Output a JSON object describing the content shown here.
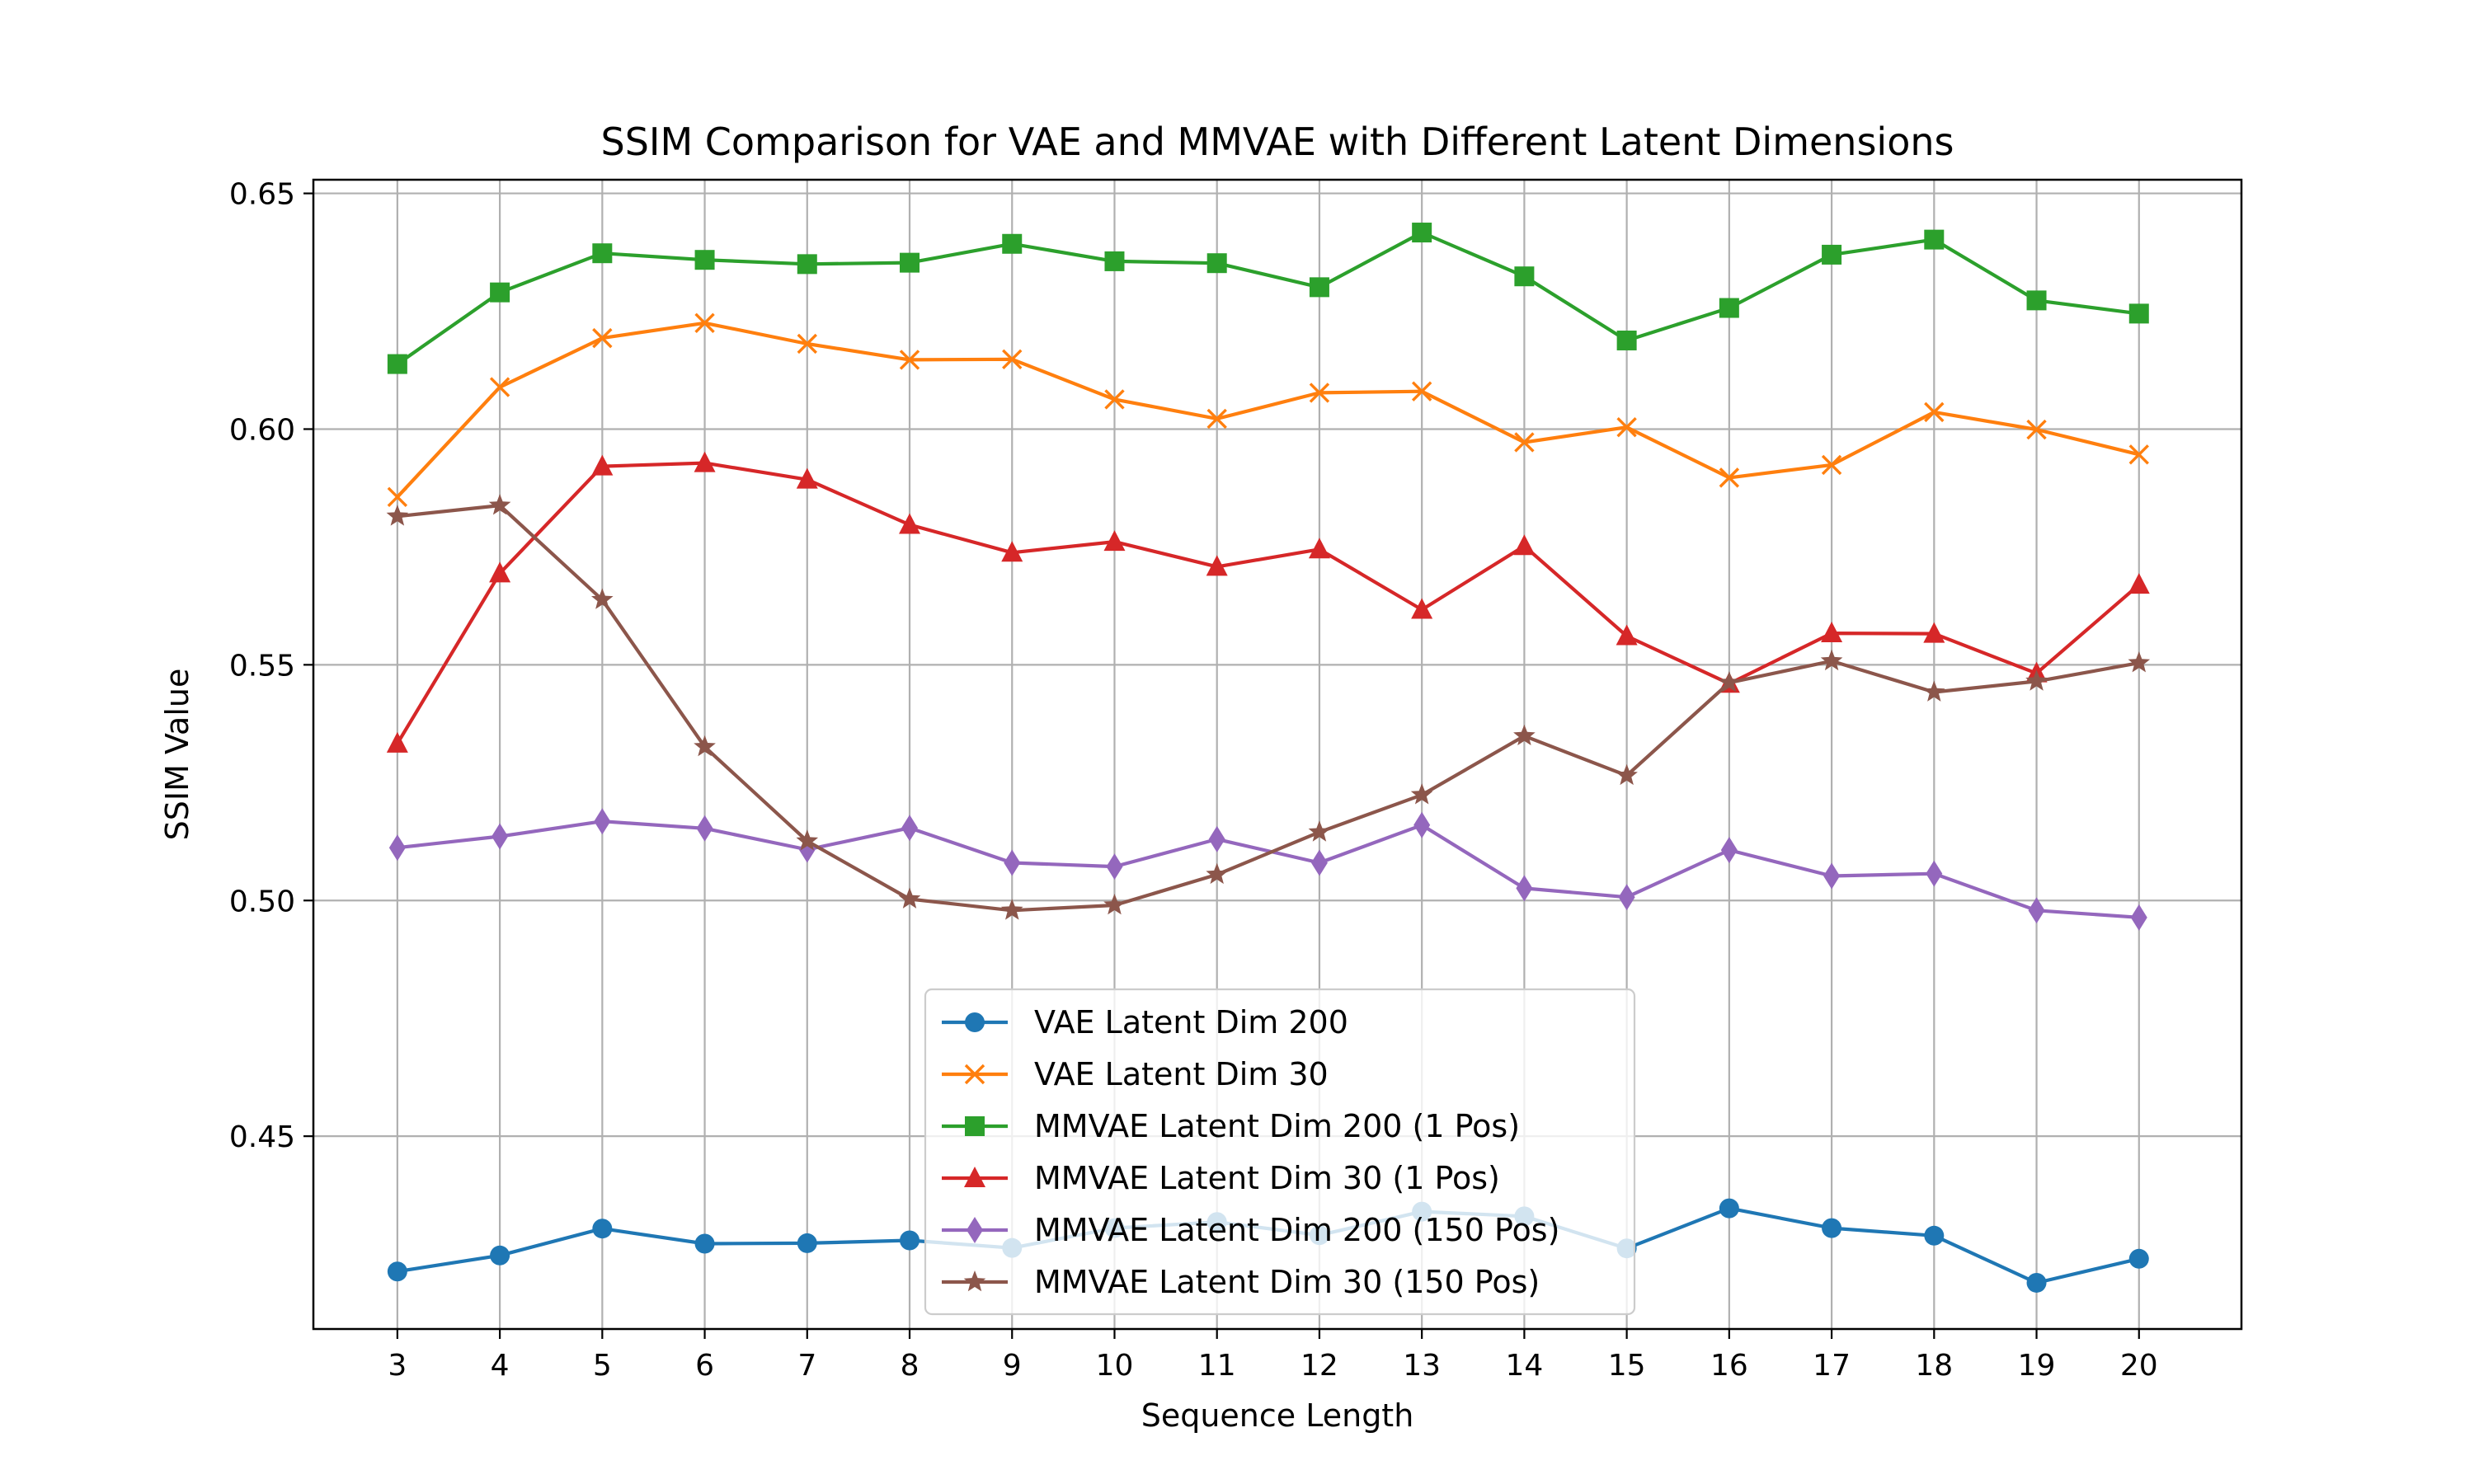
{
  "chart_data": {
    "type": "line",
    "title": "SSIM Comparison for VAE and MMVAE with Different Latent Dimensions",
    "xlabel": "Sequence Length",
    "ylabel": "SSIM Value",
    "x": [
      3,
      4,
      5,
      6,
      7,
      8,
      9,
      10,
      11,
      12,
      13,
      14,
      15,
      16,
      17,
      18,
      19,
      20
    ],
    "xlim": [
      2.18,
      21.0
    ],
    "ylim": [
      0.4091,
      0.6529
    ],
    "yticks": [
      0.45,
      0.5,
      0.55,
      0.6,
      0.65
    ],
    "ytick_labels": [
      "0.45",
      "0.50",
      "0.55",
      "0.60",
      "0.65"
    ],
    "grid": true,
    "legend_position": "lower center",
    "series": [
      {
        "name": "VAE Latent Dim 200",
        "color": "#1f77b4",
        "marker": "circle",
        "values": [
          0.4213,
          0.4247,
          0.4304,
          0.4272,
          0.4273,
          0.4279,
          0.4263,
          0.4305,
          0.4318,
          0.429,
          0.434,
          0.433,
          0.4262,
          0.4347,
          0.4305,
          0.4289,
          0.4189,
          0.424
        ]
      },
      {
        "name": "VAE Latent Dim 30",
        "color": "#ff7f0e",
        "marker": "x",
        "values": [
          0.5856,
          0.6089,
          0.6193,
          0.6225,
          0.6181,
          0.6147,
          0.6148,
          0.6063,
          0.6022,
          0.6077,
          0.608,
          0.5972,
          0.6004,
          0.5897,
          0.5924,
          0.6036,
          0.5999,
          0.5946
        ]
      },
      {
        "name": "MMVAE Latent Dim 200 (1 Pos)",
        "color": "#2ca02c",
        "marker": "square",
        "values": [
          0.6138,
          0.629,
          0.6373,
          0.6359,
          0.635,
          0.6353,
          0.6393,
          0.6356,
          0.6352,
          0.6301,
          0.6417,
          0.6324,
          0.6188,
          0.6257,
          0.637,
          0.6402,
          0.6273,
          0.6245
        ]
      },
      {
        "name": "MMVAE Latent Dim 30 (1 Pos)",
        "color": "#d62728",
        "marker": "triangle",
        "values": [
          0.5333,
          0.5694,
          0.5921,
          0.5928,
          0.5893,
          0.5797,
          0.5738,
          0.5761,
          0.5708,
          0.5745,
          0.5617,
          0.5752,
          0.5561,
          0.546,
          0.5567,
          0.5566,
          0.5482,
          0.567
        ]
      },
      {
        "name": "MMVAE Latent Dim 200 (150 Pos)",
        "color": "#9467bd",
        "marker": "diamond",
        "values": [
          0.5112,
          0.5136,
          0.5168,
          0.5153,
          0.5108,
          0.5154,
          0.508,
          0.5072,
          0.513,
          0.508,
          0.516,
          0.5026,
          0.5007,
          0.5107,
          0.5052,
          0.5057,
          0.4979,
          0.4964
        ]
      },
      {
        "name": "MMVAE Latent Dim 30 (150 Pos)",
        "color": "#8c564b",
        "marker": "star",
        "values": [
          0.5815,
          0.5838,
          0.5638,
          0.5326,
          0.5126,
          0.5003,
          0.4979,
          0.499,
          0.5055,
          0.5145,
          0.5224,
          0.5349,
          0.5265,
          0.5462,
          0.5508,
          0.5442,
          0.5465,
          0.5504
        ]
      }
    ]
  }
}
